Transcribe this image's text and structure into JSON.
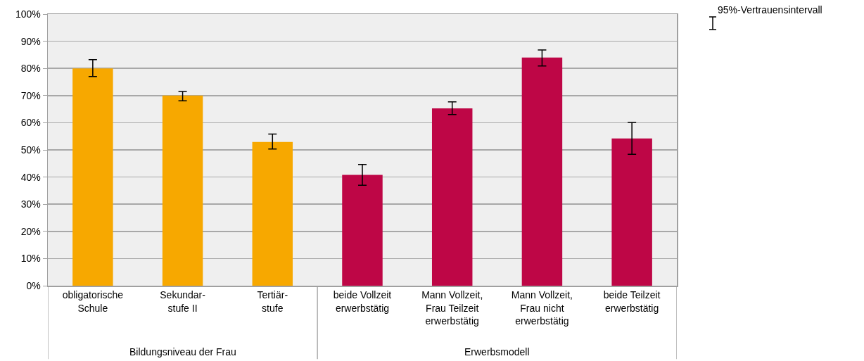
{
  "chart_data": {
    "type": "bar",
    "categories": [
      "obligatorische\nSchule",
      "Sekundar-\nstufe II",
      "Tertiär-\nstufe",
      "beide Vollzeit\nerwerbstätig",
      "Mann Vollzeit,\nFrau Teilzeit\nerwerbstätig",
      "Mann Vollzeit,\nFrau nicht\nerwerbstätig",
      "beide Teilzeit\nerwerbstätig"
    ],
    "values": [
      80.0,
      70.0,
      52.9,
      40.8,
      65.3,
      84.0,
      54.2
    ],
    "colors": [
      "#f7a800",
      "#f7a800",
      "#f7a800",
      "#be0646",
      "#be0646",
      "#be0646",
      "#be0646"
    ],
    "errors": [
      [
        77.0,
        83.2
      ],
      [
        68.1,
        71.5
      ],
      [
        50.3,
        55.8
      ],
      [
        37.0,
        44.6
      ],
      [
        63.0,
        67.7
      ],
      [
        80.9,
        86.8
      ],
      [
        48.4,
        60.1
      ]
    ],
    "ylim": [
      0,
      100
    ],
    "yticks": [
      {
        "value": 0,
        "label": "0%"
      },
      {
        "value": 10,
        "label": "10%"
      },
      {
        "value": 20,
        "label": "20%"
      },
      {
        "value": 30,
        "label": "30%"
      },
      {
        "value": 40,
        "label": "40%"
      },
      {
        "value": 50,
        "label": "50%"
      },
      {
        "value": 60,
        "label": "60%"
      },
      {
        "value": 70,
        "label": "70%"
      },
      {
        "value": 80,
        "label": "80%"
      },
      {
        "value": 90,
        "label": "90%"
      },
      {
        "value": 100,
        "label": "100%"
      }
    ],
    "grid": "y",
    "annotations": [
      "Bildungsniveau der Frau",
      "Erwerbsmodell",
      "95%-Vertrauensintervall"
    ]
  }
}
